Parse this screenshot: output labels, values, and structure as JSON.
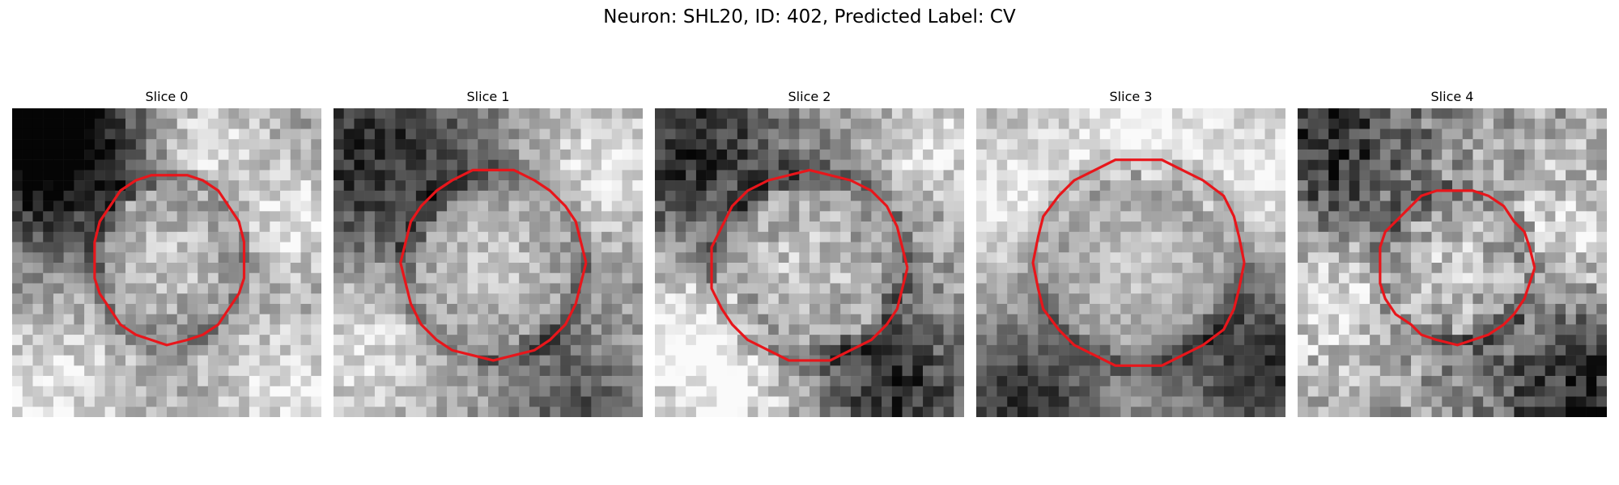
{
  "figure": {
    "title": "Neuron: SHL20, ID: 402, Predicted Label: CV",
    "contour_color": "#e8161b",
    "panels": [
      {
        "title": "Slice 0"
      },
      {
        "title": "Slice 1"
      },
      {
        "title": "Slice 2"
      },
      {
        "title": "Slice 3"
      },
      {
        "title": "Slice 4"
      }
    ]
  }
}
